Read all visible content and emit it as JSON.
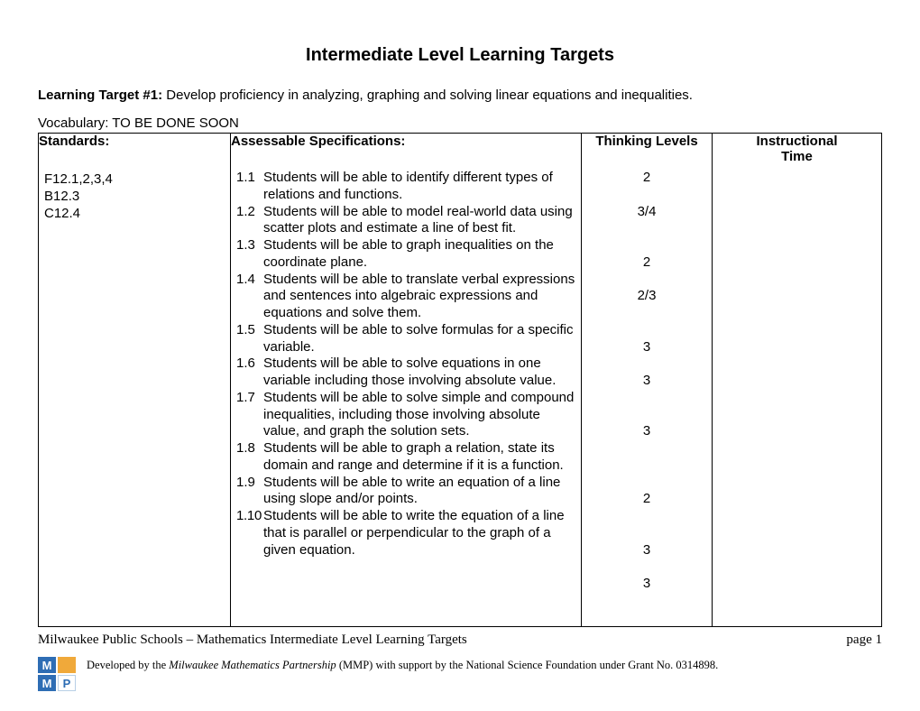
{
  "page_title": "Intermediate Level Learning Targets",
  "learning_target": {
    "label": "Learning Target #1:",
    "text": "Develop proficiency in analyzing, graphing and solving linear equations and inequalities."
  },
  "vocab": "Vocabulary: TO BE DONE SOON",
  "headers": {
    "standards": "Standards",
    "specs": "Assessable Specifications:",
    "thinking": "Thinking Levels",
    "time_line1": "Instructional",
    "time_line2": "Time"
  },
  "standards": [
    "F12.1,2,3,4",
    "B12.3",
    "C12.4"
  ],
  "specs": [
    {
      "num": "1.1",
      "text": "Students will be able to identify different types of relations and functions.",
      "thinking": "2",
      "lines": 2
    },
    {
      "num": "1.2",
      "text": "Students will be able to model real-world data using scatter plots and estimate a line of best fit.",
      "thinking": "3/4",
      "lines": 3
    },
    {
      "num": "1.3",
      "text": "Students will be able to graph inequalities on the coordinate plane.",
      "thinking": "2",
      "lines": 2
    },
    {
      "num": "1.4",
      "text": "Students will be able to translate verbal expressions and sentences into algebraic expressions and equations and solve them.",
      "thinking": "2/3",
      "lines": 3
    },
    {
      "num": "1.5",
      "text": "Students will be able to solve formulas for a specific variable.",
      "thinking": "3",
      "lines": 2
    },
    {
      "num": "1.6",
      "text": "Students will be able to solve equations in one variable including those involving absolute value.",
      "thinking": "3",
      "lines": 3
    },
    {
      "num": "1.7",
      "text": "Students will be able to solve simple and compound inequalities, including those involving absolute value, and graph the solution sets.",
      "thinking": "3",
      "lines": 4
    },
    {
      "num": "1.8",
      "text": "Students will be able to graph a relation, state its domain and range and determine if it is a function.",
      "thinking": "2",
      "lines": 3
    },
    {
      "num": "1.9",
      "text": "Students will be able to write an equation of a line using slope and/or points.",
      "thinking": "3",
      "lines": 2
    },
    {
      "num": "1.10",
      "text": "Students will be able to write the equation of a line that is parallel or perpendicular to the graph of a given equation.",
      "thinking": "3",
      "lines": 3
    }
  ],
  "footer": {
    "left": "Milwaukee Public Schools – Mathematics Intermediate Level Learning Targets",
    "right": "page 1",
    "credit_prefix": "Developed by the ",
    "credit_italic": "Milwaukee Mathematics Partnership",
    "credit_suffix": " (MMP) with support by the National Science Foundation under Grant No. 0314898."
  },
  "logo": {
    "m": "M",
    "p": "P"
  }
}
